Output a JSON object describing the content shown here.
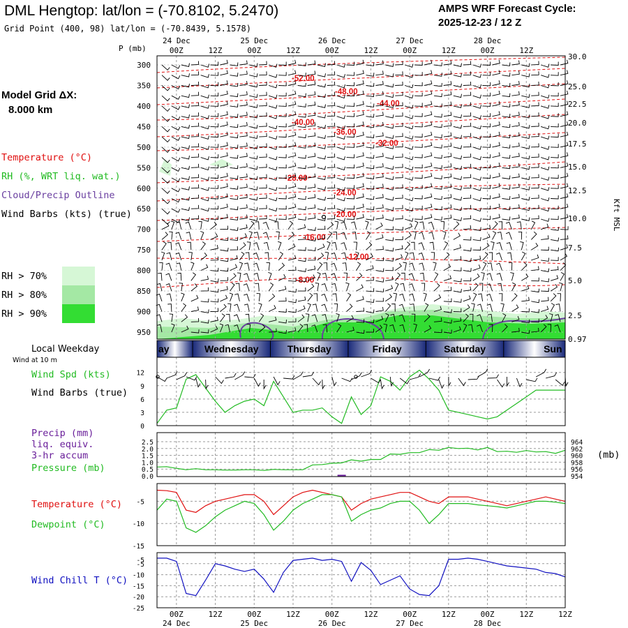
{
  "header": {
    "title": "DML Hengtop:  lat/lon = (-70.8102, 5.2470)",
    "subtitle": "Grid Point (400, 98) lat/lon = (-70.8439, 5.1578)",
    "cycle_title": "AMPS WRF Forecast Cycle:",
    "cycle_value": "2025-12-23 / 12  Z"
  },
  "model_grid": {
    "label": "Model Grid ΔX:",
    "value": "8.000 km"
  },
  "legend": {
    "temperature": "Temperature (°C)",
    "rh": "RH (%, WRT liq. wat.)",
    "cloud": "Cloud/Precip Outline",
    "wind": "Wind Barbs (kts) (true)",
    "rh_levels": [
      {
        "label": "RH > 70%",
        "color": "#d6f7d6"
      },
      {
        "label": "RH > 80%",
        "color": "#a4e8a4"
      },
      {
        "label": "RH > 90%",
        "color": "#33dd33"
      }
    ]
  },
  "time_axis": {
    "top_dates": [
      "24 Dec",
      "25 Dec",
      "26 Dec",
      "27 Dec",
      "28 Dec"
    ],
    "hours": [
      "00Z",
      "12Z",
      "00Z",
      "12Z",
      "00Z",
      "12Z",
      "00Z",
      "12Z",
      "00Z",
      "12Z"
    ],
    "bottom_dates": [
      "24 Dec",
      "25 Dec",
      "26 Dec",
      "27 Dec",
      "28 Dec"
    ]
  },
  "colors": {
    "temperature": "#e01010",
    "dewpoint": "#22bb22",
    "wind_chill": "#1010c0",
    "pressure": "#22bb22",
    "precip": "#6a1f9a",
    "cloud_outline": "#6a3fa0",
    "day_band_dark": "#1a2a7a",
    "day_band_light": "#ffffff"
  },
  "chart_data": [
    {
      "type": "contour",
      "name": "upper-air cross section",
      "ylabel": "P (mb)",
      "y2label": "Kft MSL",
      "pressure_ticks": [
        300,
        350,
        400,
        450,
        500,
        550,
        600,
        650,
        700,
        750,
        800,
        850,
        900,
        950
      ],
      "height_ticks": [
        "30.0",
        "25.0",
        "22.5",
        "20.0",
        "17.5",
        "15.0",
        "12.5",
        "10.0",
        "7.5",
        "5.0",
        "2.5",
        "0.97"
      ],
      "isotherm_labels": [
        "-52.00",
        "-48.00",
        "-44.00",
        "-40.00",
        "-36.00",
        "-32.00",
        "-28.00",
        "-24.00",
        "-20.00",
        "-16.00",
        "-12.00",
        "-8.00"
      ],
      "xlim_hours": [
        -6,
        120
      ]
    },
    {
      "type": "band",
      "name": "Local Weekday",
      "days": [
        "ay",
        "Wednesday",
        "Thursday",
        "Friday",
        "Saturday",
        "Sun"
      ]
    },
    {
      "type": "line",
      "name": "Wind at 10 m",
      "title": "Local Weekday",
      "subtitle": "Wind at 10 m",
      "series_labels": [
        "Wind Spd (kts)",
        "Wind Barbs (true)"
      ],
      "yticks": [
        0,
        3,
        6,
        9,
        12
      ],
      "ylim": [
        0,
        14
      ],
      "x_hours": [
        -6,
        -3,
        0,
        3,
        6,
        9,
        12,
        15,
        18,
        21,
        24,
        27,
        30,
        33,
        36,
        39,
        42,
        45,
        48,
        51,
        54,
        57,
        60,
        63,
        66,
        69,
        72,
        75,
        78,
        81,
        84,
        87,
        90,
        93,
        96,
        99,
        102,
        105,
        108,
        111,
        114,
        117,
        120
      ],
      "values": [
        0.5,
        3.5,
        4,
        10.5,
        11.5,
        8.5,
        5.5,
        3,
        4.5,
        5.5,
        6,
        4.5,
        10,
        6.5,
        3,
        3.5,
        3.5,
        4,
        2,
        0.5,
        6.5,
        2.5,
        4.5,
        11,
        10,
        8,
        11,
        12.5,
        10.5,
        8,
        3.5,
        3,
        2.5,
        2,
        1.5,
        2,
        3.5,
        5,
        6.5,
        8,
        8,
        8,
        8
      ]
    },
    {
      "type": "line",
      "name": "Precip and Pressure",
      "series_labels": [
        "Precip (mm)",
        "liq. equiv.",
        "3-hr accum",
        "Pressure (mb)"
      ],
      "y_left_ticks": [
        "2.5",
        "2.0",
        "1.5",
        "1.0",
        "0.5",
        "0.0"
      ],
      "y_right_ticks": [
        "964",
        "962",
        "960",
        "958",
        "956",
        "954"
      ],
      "y_right_unit": "(mb)",
      "ylim_precip": [
        0,
        2.5
      ],
      "ylim_pressure": [
        954,
        965
      ],
      "x_hours": [
        -6,
        -3,
        0,
        3,
        6,
        9,
        12,
        15,
        18,
        21,
        24,
        27,
        30,
        33,
        36,
        39,
        42,
        45,
        48,
        51,
        54,
        57,
        60,
        63,
        66,
        69,
        72,
        75,
        78,
        81,
        84,
        87,
        90,
        93,
        96,
        99,
        102,
        105,
        108,
        111,
        114,
        117,
        120
      ],
      "pressure": [
        956.6,
        956.7,
        956.2,
        955.8,
        956.1,
        955.8,
        955.8,
        955.7,
        955.7,
        955.8,
        955.8,
        955.6,
        955.9,
        955.8,
        955.8,
        955.8,
        957.2,
        957.3,
        957.7,
        957.8,
        958.7,
        958.3,
        958.8,
        958.8,
        960.4,
        960.3,
        960.8,
        960.8,
        961.7,
        961.5,
        962.3,
        962.0,
        962.1,
        961.6,
        962.3,
        961.1,
        961.2,
        960.9,
        961.4,
        961.0,
        961.1,
        960.6,
        961.5
      ],
      "precip": [
        0,
        0,
        0,
        0,
        0,
        0,
        0,
        0,
        0,
        0,
        0,
        0,
        0,
        0,
        0,
        0,
        0,
        0,
        0,
        0.03,
        0,
        0,
        0,
        0,
        0,
        0,
        0,
        0,
        0,
        0,
        0,
        0,
        0,
        0,
        0,
        0,
        0,
        0,
        0,
        0,
        0,
        0,
        0
      ]
    },
    {
      "type": "line",
      "name": "Temperature and Dewpoint",
      "series_labels": [
        "Temperature (°C)",
        "Dewpoint (°C)"
      ],
      "yticks": [
        -5,
        -10,
        -15
      ],
      "ylim": [
        -15,
        -1
      ],
      "x_hours": [
        -6,
        -3,
        0,
        3,
        6,
        9,
        12,
        15,
        18,
        21,
        24,
        27,
        30,
        33,
        36,
        39,
        42,
        45,
        48,
        51,
        54,
        57,
        60,
        63,
        66,
        69,
        72,
        75,
        78,
        81,
        84,
        87,
        90,
        93,
        96,
        99,
        102,
        105,
        108,
        111,
        114,
        117,
        120
      ],
      "series": [
        {
          "name": "Temperature",
          "values": [
            -2.5,
            -2.6,
            -3.0,
            -7.0,
            -7.5,
            -6.0,
            -5.0,
            -4.5,
            -4.0,
            -3.5,
            -3.5,
            -5.0,
            -8.0,
            -6.0,
            -4.0,
            -3.0,
            -2.5,
            -3.0,
            -3.5,
            -4.0,
            -7.0,
            -5.5,
            -4.5,
            -4.0,
            -3.5,
            -3.0,
            -3.0,
            -4.0,
            -5.0,
            -5.5,
            -4.0,
            -4.0,
            -4.0,
            -4.5,
            -5.0,
            -5.5,
            -6.0,
            -5.5,
            -5.0,
            -4.5,
            -4.0,
            -4.5,
            -5.0
          ]
        },
        {
          "name": "Dewpoint",
          "values": [
            -7.0,
            -4.5,
            -5.0,
            -11.0,
            -12.0,
            -10.5,
            -8.5,
            -7.0,
            -6.0,
            -5.0,
            -5.5,
            -8.0,
            -11.5,
            -9.5,
            -7.0,
            -5.5,
            -4.5,
            -3.5,
            -3.5,
            -4.0,
            -9.5,
            -8.0,
            -7.0,
            -6.5,
            -5.5,
            -5.0,
            -5.0,
            -7.0,
            -10.0,
            -8.0,
            -5.5,
            -5.5,
            -5.5,
            -5.8,
            -6.0,
            -6.2,
            -6.5,
            -6.0,
            -5.5,
            -5.0,
            -5.0,
            -5.2,
            -5.5
          ]
        }
      ]
    },
    {
      "type": "line",
      "name": "Wind Chill",
      "series_labels": [
        "Wind Chill T (°C)"
      ],
      "yticks": [
        -5,
        -10,
        -15,
        -20,
        -25
      ],
      "ylim": [
        -25,
        0
      ],
      "x_hours": [
        -6,
        -3,
        0,
        3,
        6,
        9,
        12,
        15,
        18,
        21,
        24,
        27,
        30,
        33,
        36,
        39,
        42,
        45,
        48,
        51,
        54,
        57,
        60,
        63,
        66,
        69,
        72,
        75,
        78,
        81,
        84,
        87,
        90,
        93,
        96,
        99,
        102,
        105,
        108,
        111,
        114,
        117,
        120
      ],
      "values": [
        -2.5,
        -2.5,
        -4.0,
        -18.5,
        -19.5,
        -12.5,
        -5.0,
        -6.0,
        -7.5,
        -8.5,
        -7.5,
        -12.0,
        -18.0,
        -9.0,
        -3.5,
        -3.0,
        -2.5,
        -3.5,
        -3.0,
        -4.0,
        -13.0,
        -4.5,
        -8.0,
        -14.5,
        -12.5,
        -10.5,
        -16.5,
        -19.0,
        -19.5,
        -15.0,
        -3.0,
        -3.0,
        -2.5,
        -3.0,
        -4.0,
        -5.0,
        -6.0,
        -6.5,
        -7.0,
        -7.5,
        -9.0,
        -9.5,
        -11.0
      ]
    }
  ]
}
